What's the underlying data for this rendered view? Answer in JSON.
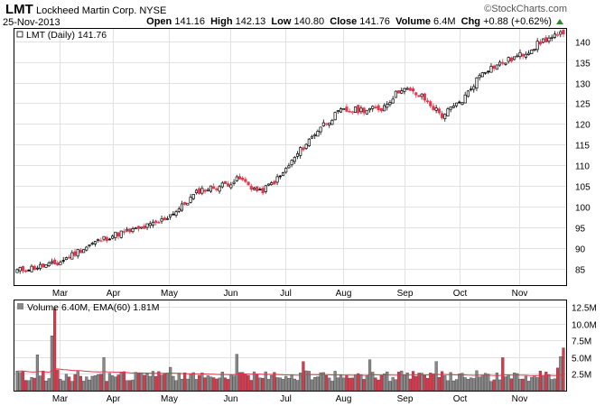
{
  "header": {
    "symbol": "LMT",
    "company": "Lockheed Martin Corp.",
    "exchange": "NYSE",
    "date": "25-Nov-2013",
    "brand": "©StockCharts.com",
    "open_label": "Open",
    "open": "141.16",
    "high_label": "High",
    "high": "142.13",
    "low_label": "Low",
    "low": "140.80",
    "close_label": "Close",
    "close": "141.76",
    "volume_label": "Volume",
    "volume": "6.4M",
    "chg_label": "Chg",
    "chg": "+0.88 (+0.62%)",
    "up_color": "#2a8a2a"
  },
  "chart_data": [
    {
      "type": "candlestick",
      "legend": "LMT (Daily) 141.76",
      "x_tick_labels": [
        "Mar",
        "Apr",
        "May",
        "Jun",
        "Jul",
        "Aug",
        "Sep",
        "Oct",
        "Nov"
      ],
      "y_tick_labels": [
        "85",
        "90",
        "95",
        "100",
        "105",
        "110",
        "115",
        "120",
        "125",
        "130",
        "135",
        "140"
      ],
      "ylim": [
        81,
        143
      ],
      "grid": true,
      "colors": {
        "up": "#000000",
        "down": "#e8344b"
      },
      "closes_approx": [
        84.5,
        85.4,
        86.2,
        89.2,
        91.7,
        93.5,
        94.5,
        96.2,
        99.4,
        103.9,
        104.9,
        106.7,
        103.4,
        107.2,
        113.6,
        119.4,
        123.1,
        123.4,
        123.7,
        128.7,
        126.6,
        122.0,
        125.6,
        132.8,
        134.8,
        136.9,
        140.2,
        141.76
      ]
    },
    {
      "type": "bar",
      "legend": "Volume 6.40M, EMA(60) 1.81M",
      "x_tick_labels": [
        "Mar",
        "Apr",
        "May",
        "Jun",
        "Jul",
        "Aug",
        "Sep",
        "Oct",
        "Nov"
      ],
      "y_tick_labels": [
        "2.5M",
        "5.0M",
        "7.5M",
        "10.0M",
        "12.5M"
      ],
      "ylim": [
        0,
        13.5
      ],
      "unit": "M",
      "grid": true,
      "colors": {
        "up": "#888888",
        "down": "#e8344b",
        "ema": "#e8344b"
      },
      "peaks": [
        {
          "label": "late Feb",
          "value": 12.3
        },
        {
          "label": "Nov 25",
          "value": 6.4
        }
      ],
      "ema_last": 1.81
    }
  ]
}
